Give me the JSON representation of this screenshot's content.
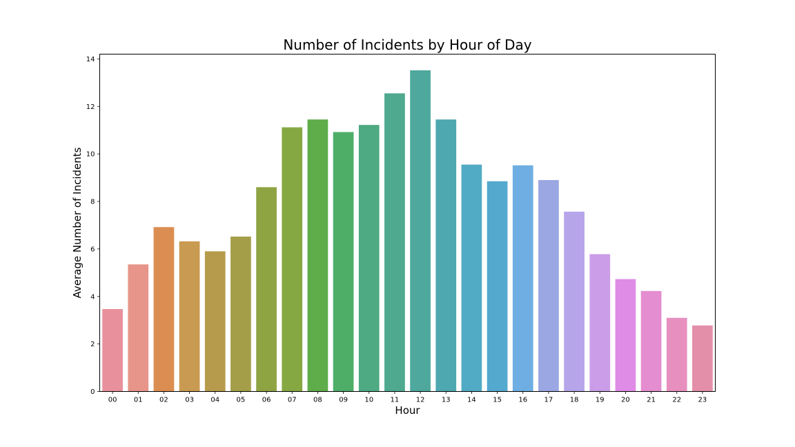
{
  "chart_data": {
    "type": "bar",
    "title": "Number of Incidents by Hour of Day",
    "xlabel": "Hour",
    "ylabel": "Average Number of Incidents",
    "categories": [
      "00",
      "01",
      "02",
      "03",
      "04",
      "05",
      "06",
      "07",
      "08",
      "09",
      "10",
      "11",
      "12",
      "13",
      "14",
      "15",
      "16",
      "17",
      "18",
      "19",
      "20",
      "21",
      "22",
      "23"
    ],
    "values": [
      3.47,
      5.35,
      6.92,
      6.32,
      5.9,
      6.52,
      8.6,
      11.12,
      11.45,
      10.92,
      11.22,
      12.55,
      13.52,
      11.45,
      9.55,
      8.85,
      9.52,
      8.9,
      7.57,
      5.78,
      4.73,
      4.23,
      3.1,
      2.78
    ],
    "colors": [
      "#e8919d",
      "#e7958a",
      "#dc8e52",
      "#c99a51",
      "#b79b4c",
      "#a49e49",
      "#8ea443",
      "#86a843",
      "#5ead4a",
      "#4eae68",
      "#4eaa82",
      "#4ea98f",
      "#4ea89d",
      "#4da8b0",
      "#52abc4",
      "#54a9cf",
      "#6eaee2",
      "#9ba7e2",
      "#b7a5e9",
      "#cb9de8",
      "#de8ce5",
      "#e58dd1",
      "#e790c0",
      "#e48fa9"
    ],
    "ylim": [
      0,
      14.2
    ],
    "yticks": [
      0,
      2,
      4,
      6,
      8,
      10,
      12,
      14
    ],
    "grid": false,
    "legend": "none"
  }
}
